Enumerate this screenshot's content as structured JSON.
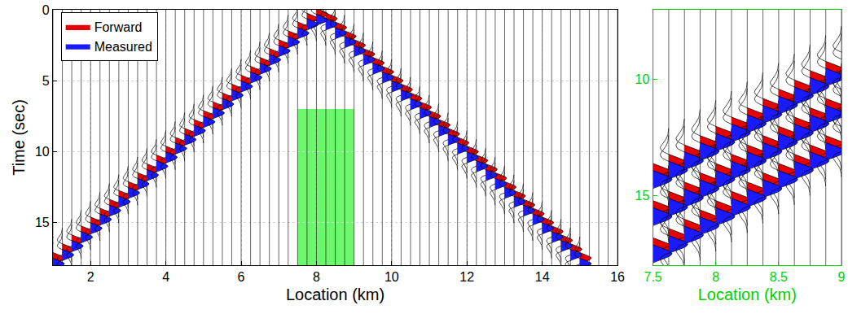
{
  "chart_data": [
    {
      "type": "wiggle",
      "xlabel": "Location (km)",
      "ylabel": "Time (sec)",
      "xlim": [
        1,
        16
      ],
      "xticks": [
        2,
        4,
        6,
        8,
        10,
        12,
        14,
        16
      ],
      "ylim": [
        18,
        0
      ],
      "yticks": [
        0,
        5,
        10,
        15
      ],
      "grid": true,
      "legend": "upper left",
      "trace_locations": [
        1,
        1.25,
        1.5,
        1.75,
        2,
        2.25,
        2.5,
        2.75,
        3,
        3.25,
        3.5,
        3.75,
        4,
        4.25,
        4.5,
        4.75,
        5,
        5.25,
        5.5,
        5.75,
        6,
        6.25,
        6.5,
        6.75,
        7,
        7.25,
        7.5,
        7.75,
        8,
        8.25,
        8.5,
        8.75,
        9,
        9.25,
        9.5,
        9.75,
        10,
        10.25,
        10.5,
        10.75,
        11,
        11.25,
        11.5,
        11.75,
        12,
        12.25,
        12.5,
        12.75,
        13,
        13.25,
        13.5,
        13.75,
        14,
        14.25,
        14.5,
        14.75,
        15,
        15.25,
        15.5,
        15.75,
        16
      ],
      "highlight": {
        "xlim": [
          7.5,
          9
        ],
        "ylim": [
          7,
          18
        ],
        "color": "#6cf76c"
      },
      "series": [
        {
          "name": "Forward",
          "color": "#e60000",
          "x": [
            8,
            7.75,
            7.5,
            7.25,
            7,
            6.75,
            6.5,
            6.25,
            6,
            5.75,
            5.5,
            5.25,
            5,
            4.75,
            4.5,
            4.25,
            4,
            3.75,
            3.5,
            3.25,
            3,
            2.75,
            2.5,
            2.25,
            2,
            1.75,
            1.5,
            1.25,
            1,
            8.25,
            8.5,
            8.75,
            9,
            9.25,
            9.5,
            9.75,
            10,
            10.25,
            10.5,
            10.75,
            11,
            11.25,
            11.5,
            11.75,
            12,
            12.25,
            12.5,
            12.75,
            13,
            13.25,
            13.5,
            13.75,
            14,
            14.25,
            14.5,
            14.75,
            15
          ],
          "values": [
            0.3,
            0.625,
            1.25,
            1.875,
            2.5,
            3.125,
            3.75,
            4.375,
            5,
            5.625,
            6.25,
            6.875,
            7.5,
            8.125,
            8.75,
            9.375,
            10,
            10.625,
            11.25,
            11.875,
            12.5,
            13.125,
            13.75,
            14.375,
            15,
            15.625,
            16.25,
            16.875,
            17.5,
            0.625,
            1.25,
            1.875,
            2.5,
            3.125,
            3.75,
            4.375,
            5,
            5.625,
            6.25,
            6.875,
            7.5,
            8.125,
            8.75,
            9.375,
            10,
            10.625,
            11.25,
            11.875,
            12.5,
            13.125,
            13.75,
            14.375,
            15,
            15.625,
            16.25,
            16.875,
            17.5
          ]
        },
        {
          "name": "Measured",
          "color": "#1a1aff",
          "x": [
            8,
            7.75,
            7.5,
            7.25,
            7,
            6.75,
            6.5,
            6.25,
            6,
            5.75,
            5.5,
            5.25,
            5,
            4.75,
            4.5,
            4.25,
            4,
            3.75,
            3.5,
            3.25,
            3,
            2.75,
            2.5,
            2.25,
            2,
            1.75,
            1.5,
            1.25,
            1,
            8.25,
            8.5,
            8.75,
            9,
            9.25,
            9.5,
            9.75,
            10,
            10.25,
            10.5,
            10.75,
            11,
            11.25,
            11.5,
            11.75,
            12,
            12.25,
            12.5,
            12.75,
            13,
            13.25,
            13.5,
            13.75,
            14,
            14.25,
            14.5,
            14.75,
            15
          ],
          "values": [
            0.7,
            1.025,
            1.65,
            2.275,
            2.9,
            3.525,
            4.15,
            4.775,
            5.4,
            6.025,
            6.65,
            7.275,
            7.9,
            8.525,
            9.15,
            9.775,
            10.4,
            11.025,
            11.65,
            12.275,
            12.9,
            13.525,
            14.15,
            14.775,
            15.4,
            16.025,
            16.65,
            17.275,
            17.9,
            1.025,
            1.65,
            2.275,
            2.9,
            3.525,
            4.15,
            4.775,
            5.4,
            6.025,
            6.65,
            7.275,
            7.9,
            8.525,
            9.15,
            9.775,
            10.4,
            11.025,
            11.65,
            12.275,
            12.9,
            13.525,
            14.15,
            14.775,
            15.4,
            16.025,
            16.65,
            17.275,
            17.9
          ]
        }
      ]
    },
    {
      "type": "wiggle",
      "xlabel": "Location (km)",
      "xlim": [
        7.5,
        9
      ],
      "xticks": [
        7.5,
        8,
        8.5,
        9
      ],
      "ylim": [
        18,
        7
      ],
      "yticks": [
        10,
        15
      ],
      "grid": false,
      "color": "#00d000",
      "trace_locations": [
        7.5,
        7.625,
        7.75,
        7.875,
        8,
        8.125,
        8.25,
        8.375,
        8.5,
        8.625,
        8.75,
        8.875,
        9
      ],
      "series": [
        {
          "name": "Forward",
          "color": "#e60000",
          "x": [
            7.5,
            7.625,
            7.75,
            7.875,
            8,
            8.125,
            8.25,
            8.375,
            8.5,
            8.625,
            8.75,
            8.875,
            9,
            7.5,
            7.625,
            7.75,
            7.875,
            8,
            8.125,
            8.25,
            8.375,
            8.5,
            8.625,
            8.75,
            8.875,
            9,
            7.5,
            7.625,
            7.75,
            7.875,
            8,
            8.125,
            8.25,
            8.375,
            8.5,
            8.625,
            8.75,
            8.875,
            9
          ],
          "values": [
            14,
            13.6,
            13.2,
            12.8,
            12.4,
            12,
            11.6,
            11.2,
            10.8,
            10.4,
            10,
            9.6,
            9.2,
            15.6,
            15.2,
            14.8,
            14.4,
            14,
            13.6,
            13.2,
            12.8,
            12.4,
            12,
            11.6,
            11.2,
            10.8,
            17.2,
            16.8,
            16.4,
            16,
            15.6,
            15.2,
            14.8,
            14.4,
            14,
            13.6,
            13.2,
            12.8,
            12.4
          ]
        },
        {
          "name": "Measured",
          "color": "#1a1aff",
          "x": [
            7.5,
            7.625,
            7.75,
            7.875,
            8,
            8.125,
            8.25,
            8.375,
            8.5,
            8.625,
            8.75,
            8.875,
            9,
            7.5,
            7.625,
            7.75,
            7.875,
            8,
            8.125,
            8.25,
            8.375,
            8.5,
            8.625,
            8.75,
            8.875,
            9,
            7.5,
            7.625,
            7.75,
            7.875,
            8,
            8.125,
            8.25,
            8.375,
            8.5,
            8.625,
            8.75,
            8.875,
            9
          ],
          "values": [
            14.3,
            13.9,
            13.5,
            13.1,
            12.7,
            12.3,
            11.9,
            11.5,
            11.1,
            10.7,
            10.3,
            9.9,
            9.5,
            15.9,
            15.5,
            15.1,
            14.7,
            14.3,
            13.9,
            13.5,
            13.1,
            12.7,
            12.3,
            11.9,
            11.5,
            11.1,
            17.5,
            17.1,
            16.7,
            16.3,
            15.9,
            15.5,
            15.1,
            14.7,
            14.3,
            13.9,
            13.5,
            13.1,
            12.7
          ]
        }
      ]
    }
  ]
}
